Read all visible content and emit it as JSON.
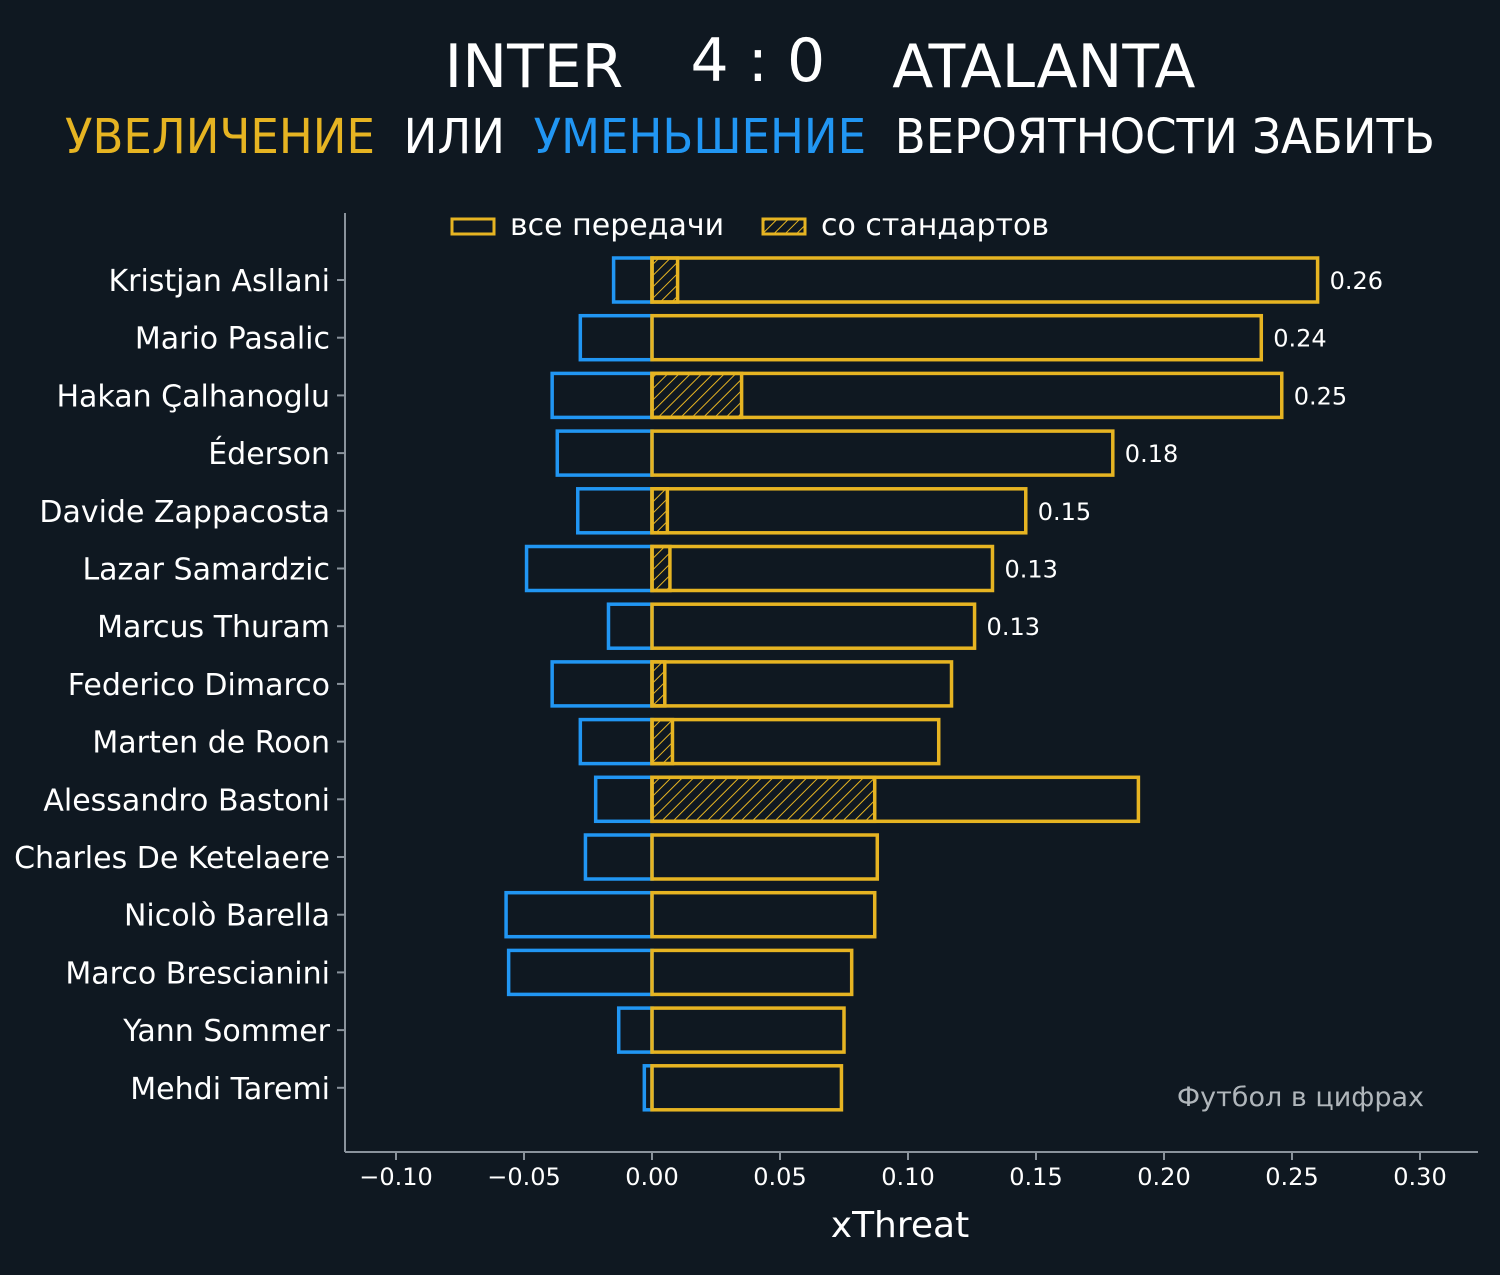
{
  "header": {
    "team_home": "INTER",
    "score": "4 : 0",
    "team_away": "ATALANTA",
    "subtitle_part1": "УВЕЛИЧЕНИЕ",
    "subtitle_part2": " ИЛИ ",
    "subtitle_part3": "УМЕНЬШЕНИЕ",
    "subtitle_part4": " ВЕРОЯТНОСТИ ЗАБИТЬ"
  },
  "legend": {
    "all_passes": "все передачи",
    "set_pieces": "со стандартов"
  },
  "watermark": "Футбол в цифрах",
  "colors": {
    "background": "#0f1821",
    "increase": "#e6b422",
    "decrease": "#2196f3",
    "text": "#ffffff",
    "axis": "#8a939c",
    "watermark": "#b0b6bb"
  },
  "chart_data": {
    "type": "bar",
    "orientation": "horizontal",
    "xlabel": "xThreat",
    "xlim": [
      -0.12,
      0.32
    ],
    "xticks": [
      -0.1,
      -0.05,
      0.0,
      0.05,
      0.1,
      0.15,
      0.2,
      0.25,
      0.3
    ],
    "xtick_labels": [
      "−0.10",
      "−0.05",
      "0.00",
      "0.05",
      "0.10",
      "0.15",
      "0.20",
      "0.25",
      "0.30"
    ],
    "legend_position": "top",
    "categories": [
      "Kristjan Asllani",
      "Mario Pasalic",
      "Hakan Çalhanoglu",
      "Éderson",
      "Davide Zappacosta",
      "Lazar Samardzic",
      "Marcus Thuram",
      "Federico Dimarco",
      "Marten de Roon",
      "Alessandro Bastoni",
      "Charles De Ketelaere",
      "Nicolò Barella",
      "Marco Brescianini",
      "Yann Sommer",
      "Mehdi Taremi"
    ],
    "series": [
      {
        "name": "все передачи",
        "values": [
          0.26,
          0.238,
          0.246,
          0.18,
          0.146,
          0.133,
          0.126,
          0.117,
          0.112,
          0.19,
          0.088,
          0.087,
          0.078,
          0.075,
          0.074
        ]
      },
      {
        "name": "со стандартов",
        "values": [
          0.01,
          0,
          0.035,
          0,
          0.006,
          0.007,
          0,
          0.005,
          0.008,
          0.087,
          0,
          0,
          0,
          0,
          0
        ]
      },
      {
        "values": [
          -0.015,
          -0.028,
          -0.039,
          -0.037,
          -0.029,
          -0.049,
          -0.017,
          -0.039,
          -0.028,
          -0.022,
          -0.026,
          -0.057,
          -0.056,
          -0.013,
          -0.003
        ]
      }
    ],
    "value_labels": [
      "0.26",
      "0.24",
      "0.25",
      "0.18",
      "0.15",
      "0.13",
      "0.13",
      "",
      "",
      "",
      "",
      "",
      "",
      "",
      ""
    ]
  }
}
